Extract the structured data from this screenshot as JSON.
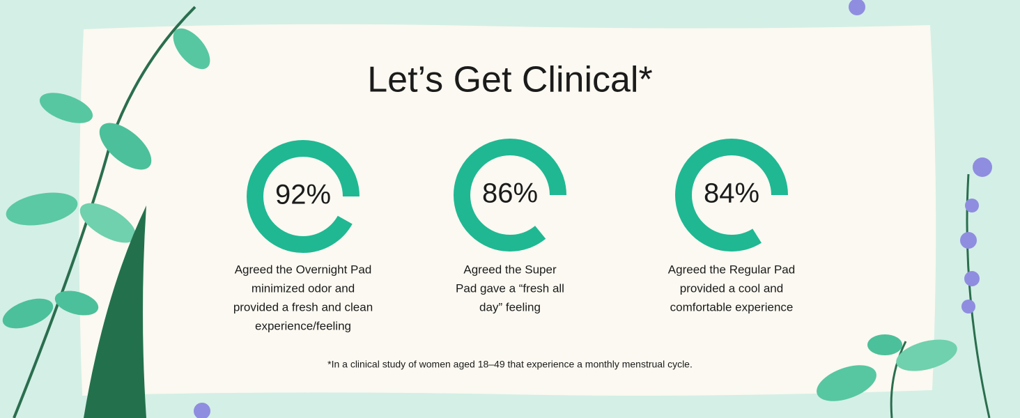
{
  "header": {
    "title": "Let’s Get Clinical*"
  },
  "stats": [
    {
      "percent": {
        "value": 92,
        "label": "92%"
      },
      "description": [
        "Agreed the Overnight Pad",
        "minimized odor and",
        "provided a fresh and clean",
        "experience/feeling"
      ]
    },
    {
      "percent": {
        "value": 86,
        "label": "86%"
      },
      "description": [
        "Agreed the Super",
        "Pad gave a “fresh all",
        "day” feeling"
      ]
    },
    {
      "percent": {
        "value": 84,
        "label": "84%"
      },
      "description": [
        "Agreed the Regular Pad",
        "provided a cool and",
        "comfortable experience"
      ]
    }
  ],
  "footnote": "*In a clinical study of women aged 18–49 that experience a monthly menstrual cycle."
}
